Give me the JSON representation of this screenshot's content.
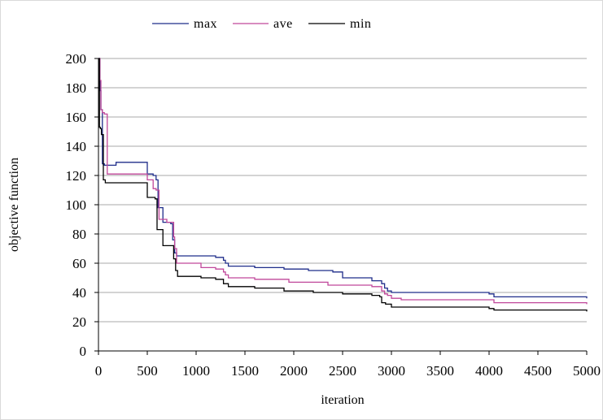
{
  "chart_data": {
    "type": "line",
    "title": "",
    "xlabel": "iteration",
    "ylabel": "objective function",
    "xlim": [
      0,
      5000
    ],
    "ylim": [
      0,
      200
    ],
    "xticks": [
      "0",
      "500",
      "1000",
      "1500",
      "2000",
      "2500",
      "3000",
      "3500",
      "4000",
      "4500",
      "5000"
    ],
    "yticks": [
      "0",
      "20",
      "40",
      "60",
      "80",
      "100",
      "120",
      "140",
      "160",
      "180",
      "200"
    ],
    "grid": "horizontal",
    "legend_position": "top",
    "step": true,
    "series": [
      {
        "name": "max",
        "color": "#1f2d8a",
        "x": [
          0,
          15,
          25,
          40,
          60,
          100,
          180,
          480,
          500,
          560,
          590,
          610,
          660,
          740,
          760,
          780,
          800,
          1100,
          1200,
          1280,
          1300,
          1330,
          1600,
          1900,
          2150,
          2400,
          2500,
          2800,
          2900,
          2930,
          2960,
          3000,
          3800,
          4000,
          4050,
          4950,
          5000
        ],
        "y": [
          200,
          178,
          165,
          128,
          127,
          127,
          129,
          129,
          121,
          120,
          117,
          98,
          88,
          87,
          76,
          67,
          65,
          65,
          64,
          62,
          60,
          58,
          57,
          56,
          55,
          54,
          50,
          48,
          46,
          43,
          41,
          40,
          40,
          39,
          37,
          37,
          36
        ]
      },
      {
        "name": "ave",
        "color": "#c0479a",
        "x": [
          0,
          15,
          25,
          40,
          60,
          90,
          480,
          500,
          560,
          590,
          620,
          700,
          770,
          780,
          800,
          1050,
          1200,
          1280,
          1300,
          1330,
          1600,
          1950,
          2350,
          2800,
          2880,
          2900,
          2930,
          2960,
          3000,
          3100,
          4000,
          4050,
          4950,
          5000
        ],
        "y": [
          200,
          185,
          165,
          163,
          162,
          121,
          121,
          117,
          111,
          110,
          90,
          88,
          78,
          70,
          60,
          57,
          56,
          54,
          52,
          50,
          49,
          47,
          45,
          44,
          44,
          41,
          39,
          38,
          36,
          35,
          35,
          33,
          33,
          32
        ]
      },
      {
        "name": "min",
        "color": "#000000",
        "x": [
          0,
          10,
          20,
          30,
          50,
          70,
          480,
          500,
          580,
          600,
          660,
          760,
          770,
          790,
          810,
          1050,
          1200,
          1280,
          1330,
          1600,
          1900,
          2200,
          2500,
          2800,
          2880,
          2900,
          2940,
          3000,
          3800,
          4000,
          4050,
          4950,
          5000
        ],
        "y": [
          200,
          153,
          152,
          148,
          117,
          115,
          115,
          105,
          104,
          83,
          72,
          72,
          63,
          55,
          51,
          50,
          49,
          46,
          44,
          43,
          41,
          40,
          39,
          38,
          37,
          33,
          32,
          30,
          30,
          29,
          28,
          28,
          27
        ]
      }
    ]
  }
}
